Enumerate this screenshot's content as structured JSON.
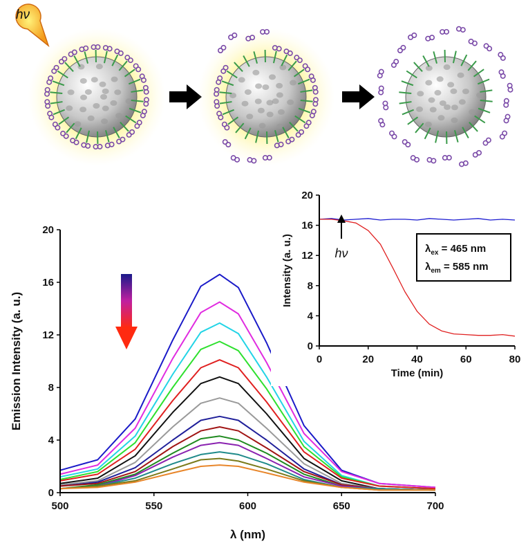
{
  "schematic": {
    "label": "hν"
  },
  "chart_data": [
    {
      "type": "line",
      "x_label": "λ (nm)",
      "y_label": "Emission Intensity (a. u.)",
      "x": [
        500,
        520,
        540,
        560,
        575,
        585,
        595,
        610,
        630,
        650,
        670,
        700
      ],
      "xlim": [
        500,
        700
      ],
      "xticks": [
        500,
        550,
        600,
        650,
        700
      ],
      "ylim": [
        0,
        20
      ],
      "yticks": [
        0,
        4,
        8,
        12,
        16,
        20
      ],
      "series": [
        {
          "color": "#1a1ac8",
          "values": [
            1.7,
            2.5,
            5.6,
            11.6,
            15.7,
            16.6,
            15.6,
            11.4,
            5.1,
            1.7,
            0.7,
            0.4
          ]
        },
        {
          "color": "#e02ce0",
          "values": [
            1.4,
            2.1,
            4.9,
            10.2,
            13.7,
            14.5,
            13.6,
            9.9,
            4.5,
            1.6,
            0.7,
            0.4
          ]
        },
        {
          "color": "#22d4e6",
          "values": [
            1.2,
            1.8,
            4.3,
            9.0,
            12.2,
            12.9,
            12.1,
            8.8,
            3.9,
            1.3,
            0.5,
            0.3
          ]
        },
        {
          "color": "#2ee02e",
          "values": [
            1.0,
            1.6,
            3.8,
            8.0,
            10.9,
            11.5,
            10.8,
            7.9,
            3.5,
            1.2,
            0.5,
            0.3
          ]
        },
        {
          "color": "#e02020",
          "values": [
            0.9,
            1.4,
            3.3,
            7.0,
            9.5,
            10.1,
            9.5,
            6.9,
            3.1,
            1.1,
            0.5,
            0.3
          ]
        },
        {
          "color": "#111111",
          "values": [
            0.7,
            1.1,
            2.8,
            6.1,
            8.3,
            8.8,
            8.3,
            6.0,
            2.6,
            0.9,
            0.3,
            0.2
          ]
        },
        {
          "color": "#9a9a9a",
          "values": [
            0.6,
            0.9,
            2.3,
            5.0,
            6.8,
            7.2,
            6.8,
            4.9,
            2.2,
            0.7,
            0.3,
            0.2
          ]
        },
        {
          "color": "#20209a",
          "values": [
            0.5,
            0.8,
            1.9,
            4.0,
            5.5,
            5.8,
            5.5,
            4.0,
            1.8,
            0.6,
            0.3,
            0.2
          ]
        },
        {
          "color": "#a01414",
          "values": [
            0.5,
            0.7,
            1.6,
            3.5,
            4.7,
            5.0,
            4.7,
            3.4,
            1.6,
            0.6,
            0.3,
            0.2
          ]
        },
        {
          "color": "#1f8a1f",
          "values": [
            0.3,
            0.6,
            1.4,
            3.0,
            4.1,
            4.3,
            4.0,
            3.0,
            1.4,
            0.5,
            0.3,
            0.2
          ]
        },
        {
          "color": "#8a22b0",
          "values": [
            0.3,
            0.5,
            1.3,
            2.7,
            3.6,
            3.8,
            3.6,
            2.6,
            1.2,
            0.5,
            0.3,
            0.2
          ]
        },
        {
          "color": "#1f8a8a",
          "values": [
            0.3,
            0.5,
            1.1,
            2.2,
            2.9,
            3.1,
            2.9,
            2.2,
            1.0,
            0.4,
            0.3,
            0.2
          ]
        },
        {
          "color": "#7a7a1a",
          "values": [
            0.3,
            0.5,
            0.9,
            1.8,
            2.5,
            2.6,
            2.4,
            1.8,
            0.9,
            0.4,
            0.2,
            0.2
          ]
        },
        {
          "color": "#e8862a",
          "values": [
            0.3,
            0.4,
            0.8,
            1.5,
            2.0,
            2.1,
            2.0,
            1.5,
            0.8,
            0.4,
            0.2,
            0.2
          ]
        }
      ]
    },
    {
      "type": "line",
      "x_label": "Time (min)",
      "y_label": "Intensity (a. u.)",
      "x": [
        0,
        5,
        10,
        15,
        20,
        25,
        30,
        35,
        40,
        45,
        50,
        55,
        60,
        65,
        70,
        75,
        80
      ],
      "xlim": [
        0,
        80
      ],
      "xticks": [
        0,
        20,
        40,
        60,
        80
      ],
      "ylim": [
        0,
        20
      ],
      "yticks": [
        0,
        4,
        8,
        12,
        16,
        20
      ],
      "arrow_label": "hν",
      "box_lines": [
        {
          "symbol": "λ",
          "sub": "ex",
          "text": " = 465 nm"
        },
        {
          "symbol": "λ",
          "sub": "em",
          "text": " = 585 nm"
        }
      ],
      "series": [
        {
          "color": "#1a1ad0",
          "values": [
            16.8,
            16.9,
            16.7,
            16.8,
            16.9,
            16.7,
            16.8,
            16.8,
            16.7,
            16.9,
            16.8,
            16.7,
            16.8,
            16.9,
            16.7,
            16.8,
            16.7
          ]
        },
        {
          "color": "#e02020",
          "values": [
            16.8,
            16.8,
            16.6,
            16.3,
            15.3,
            13.5,
            10.4,
            7.2,
            4.6,
            2.9,
            2.0,
            1.6,
            1.5,
            1.4,
            1.4,
            1.5,
            1.3
          ]
        }
      ]
    }
  ]
}
